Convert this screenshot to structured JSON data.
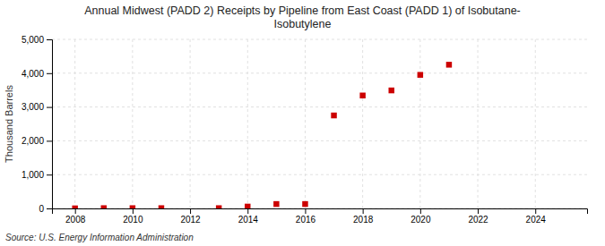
{
  "chart_data": {
    "type": "scatter",
    "title": "Annual Midwest (PADD 2) Receipts by Pipeline from East Coast (PADD 1) of Isobutane-\nIsobutylene",
    "ylabel": "Thousand Barrels",
    "source": "Source: U.S. Energy Information Administration",
    "x": [
      2008,
      2009,
      2010,
      2011,
      2013,
      2014,
      2015,
      2016,
      2017,
      2018,
      2019,
      2020,
      2021
    ],
    "values": [
      2,
      8,
      8,
      8,
      8,
      55,
      130,
      130,
      2750,
      3340,
      3490,
      3950,
      4250
    ],
    "color": "#cc0000",
    "marker": "square",
    "xlim": [
      2007.2,
      2025.8
    ],
    "ylim": [
      0,
      5000
    ],
    "xticks": [
      2008,
      2010,
      2012,
      2014,
      2016,
      2018,
      2020,
      2022,
      2024
    ],
    "yticks": [
      0,
      {
        "value": 1000,
        "label": "1,000"
      },
      {
        "value": 2000,
        "label": "2,000"
      },
      {
        "value": 3000,
        "label": "3,000"
      },
      {
        "value": 4000,
        "label": "4,000"
      },
      {
        "value": 5000,
        "label": "5,000"
      }
    ],
    "grid": true
  }
}
